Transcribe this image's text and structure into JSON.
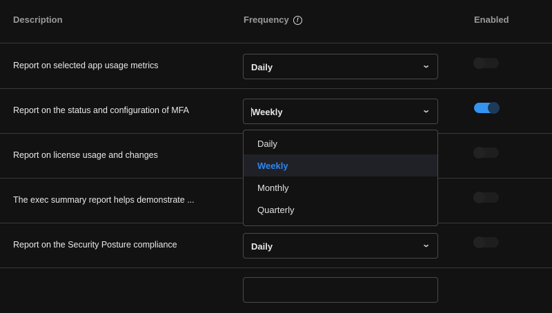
{
  "header": {
    "description": "Description",
    "frequency": "Frequency",
    "enabled": "Enabled"
  },
  "rows": [
    {
      "description": "Report on selected app usage metrics",
      "frequency": "Daily",
      "enabled": false
    },
    {
      "description": "Report on the status and configuration of MFA",
      "frequency": "Weekly",
      "enabled": true
    },
    {
      "description": "Report on license usage and changes",
      "frequency": "",
      "enabled": false
    },
    {
      "description": "The exec summary report helps demonstrate ...",
      "frequency": "",
      "enabled": false
    },
    {
      "description": "Report on the Security Posture compliance",
      "frequency": "Daily",
      "enabled": false
    }
  ],
  "dropdown": {
    "options": [
      "Daily",
      "Weekly",
      "Monthly",
      "Quarterly"
    ],
    "selected": "Weekly"
  },
  "colors": {
    "accent": "#3394f2",
    "selected_option": "#2f86f0",
    "background": "#121212"
  }
}
